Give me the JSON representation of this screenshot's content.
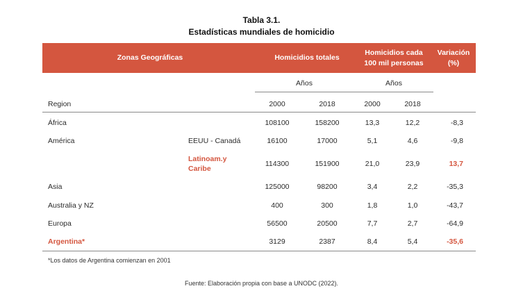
{
  "title": {
    "line1": "Tabla 3.1.",
    "line2": "Estadísticas mundiales de homicidio"
  },
  "header": {
    "zonas": "Zonas Geográficas",
    "homicidios_totales": "Homicidios totales",
    "cada_100mil_l1": "Homicidios cada",
    "cada_100mil_l2": "100 mil personas",
    "variacion_l1": "Variación",
    "variacion_l2": "(%)"
  },
  "subheader": {
    "anos_1": "Años",
    "anos_2": "Años",
    "region": "Region",
    "y2000_a": "2000",
    "y2018_a": "2018",
    "y2000_b": "2000",
    "y2018_b": "2018"
  },
  "colors": {
    "accent": "#d4563f"
  },
  "rows": [
    {
      "region": "África",
      "subregion": "",
      "h2000": "108100",
      "h2018": "158200",
      "r2000": "13,3",
      "r2018": "12,2",
      "var": "-8,3"
    },
    {
      "region": "América",
      "subregion": "EEUU - Canadá",
      "h2000": "16100",
      "h2018": "17000",
      "r2000": "5,1",
      "r2018": "4,6",
      "var": "-9,8"
    },
    {
      "region": "",
      "subregion_l1": "Latinoam.y",
      "subregion_l2": "Caribe",
      "h2000": "114300",
      "h2018": "151900",
      "r2000": "21,0",
      "r2018": "23,9",
      "var": "13,7"
    },
    {
      "region": "Asia",
      "subregion": "",
      "h2000": "125000",
      "h2018": "98200",
      "r2000": "3,4",
      "r2018": "2,2",
      "var": "-35,3"
    },
    {
      "region": "Australia y NZ",
      "subregion": "",
      "h2000": "400",
      "h2018": "300",
      "r2000": "1,8",
      "r2018": "1,0",
      "var": "-43,7"
    },
    {
      "region": "Europa",
      "subregion": "",
      "h2000": "56500",
      "h2018": "20500",
      "r2000": "7,7",
      "r2018": "2,7",
      "var": "-64,9"
    },
    {
      "region": "Argentina*",
      "subregion": "",
      "h2000": "3129",
      "h2018": "2387",
      "r2000": "8,4",
      "r2018": "5,4",
      "var": "-35,6"
    }
  ],
  "footnote": "*Los datos de Argentina comienzan en 2001",
  "source": "Fuente: Elaboración propia con base a UNODC (2022)."
}
